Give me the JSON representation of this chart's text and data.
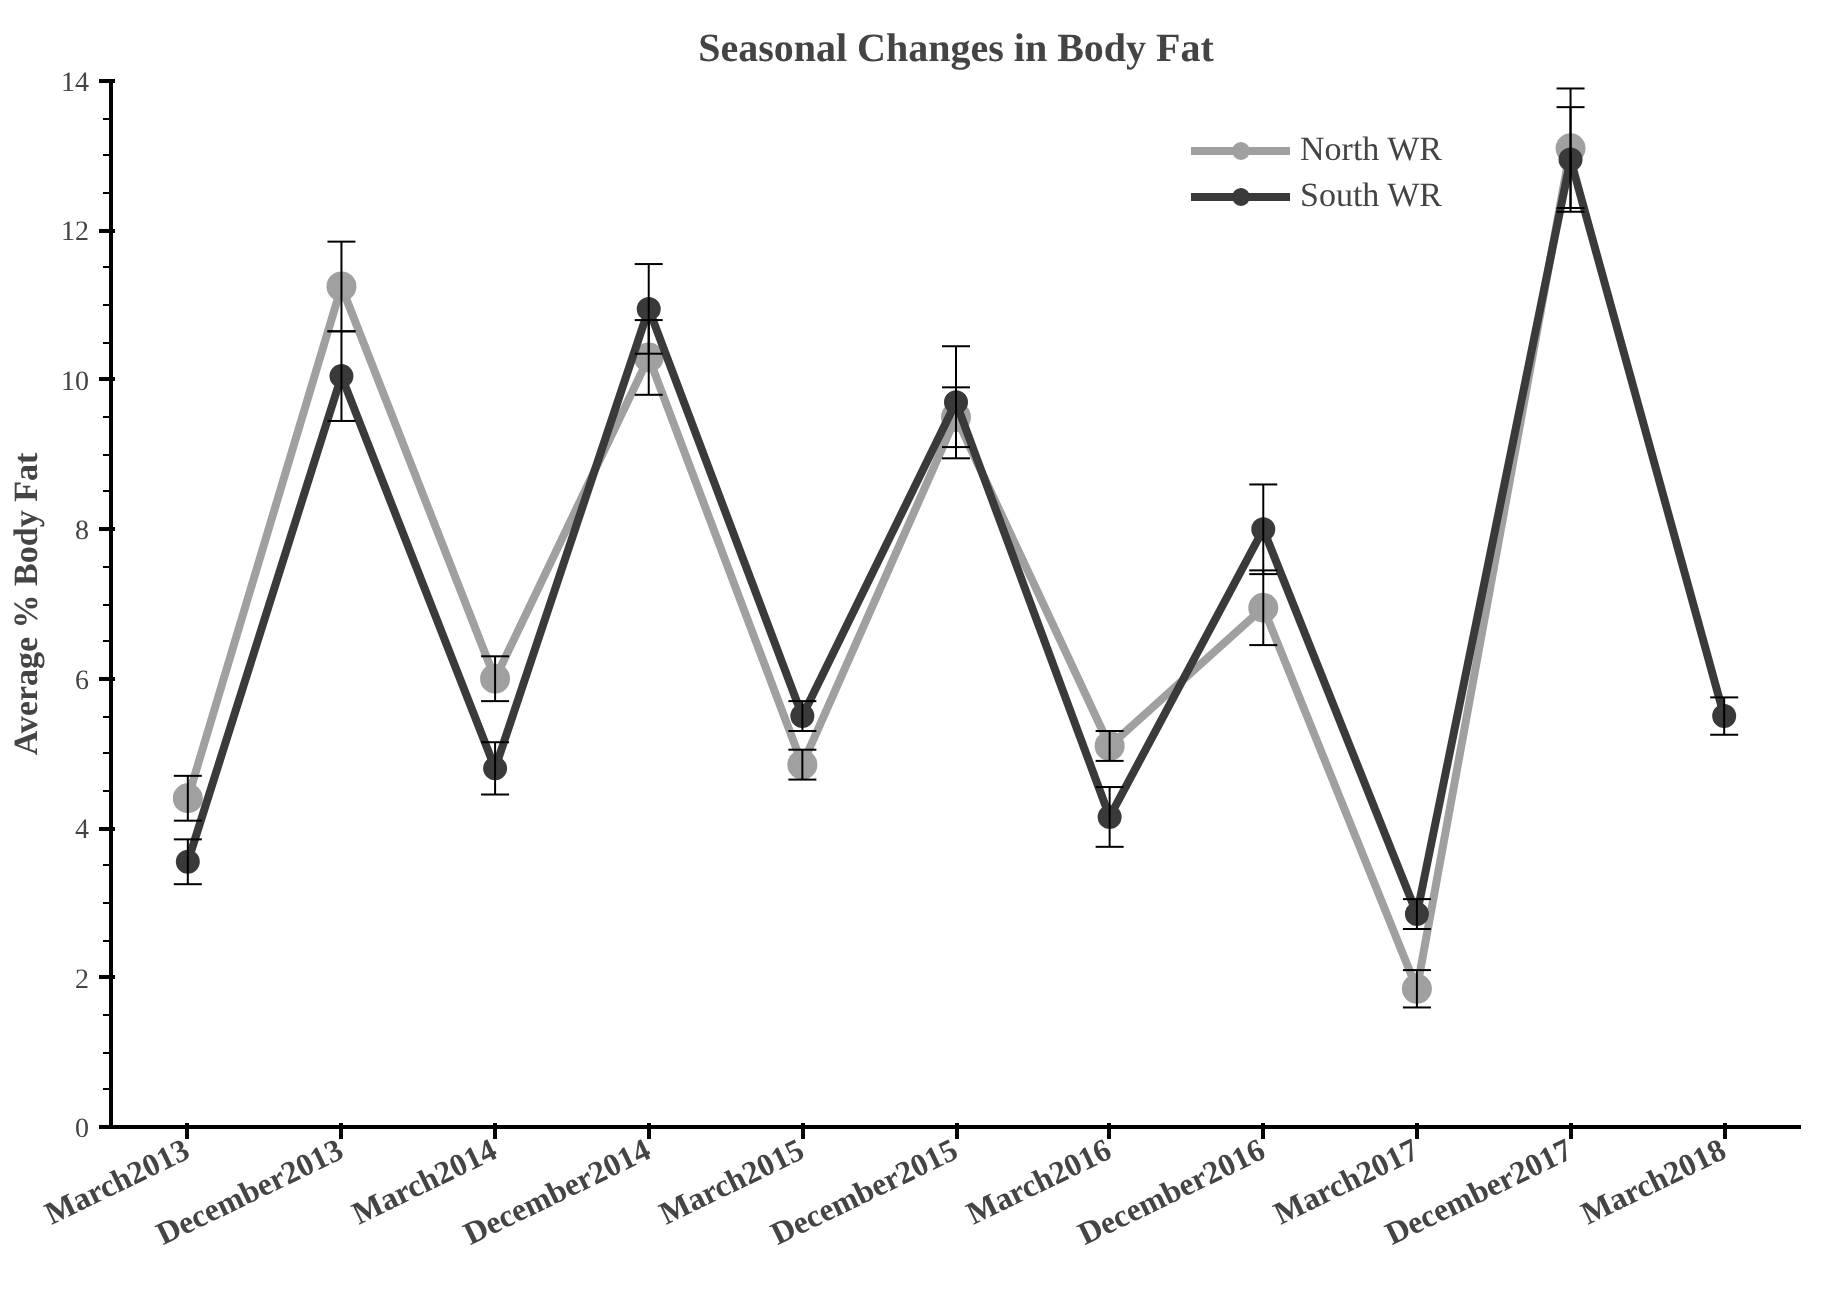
{
  "chart_data": {
    "type": "line",
    "title": "Seasonal Changes in Body Fat",
    "ylabel": "Average % Body Fat",
    "categories": [
      "March2013",
      "December2013",
      "March2014",
      "December2014",
      "March2015",
      "December2015",
      "March2016",
      "December2016",
      "March2017",
      "December2017",
      "March2018"
    ],
    "series": [
      {
        "name": "North WR",
        "color": "#a0a0a0",
        "values": [
          4.4,
          11.25,
          6.0,
          10.3,
          4.85,
          9.5,
          5.1,
          6.95,
          1.85,
          13.1,
          null
        ],
        "errors": [
          0.3,
          0.6,
          0.3,
          0.5,
          0.2,
          0.4,
          0.2,
          0.5,
          0.25,
          0.8,
          null
        ]
      },
      {
        "name": "South WR",
        "color": "#3a3a3a",
        "values": [
          3.55,
          10.05,
          4.8,
          10.95,
          5.5,
          9.7,
          4.15,
          8.0,
          2.85,
          12.95,
          5.5
        ],
        "errors": [
          0.3,
          0.6,
          0.35,
          0.6,
          0.2,
          0.75,
          0.4,
          0.6,
          0.2,
          0.7,
          0.25
        ]
      }
    ],
    "ylim": [
      0,
      14
    ],
    "yticks": [
      0,
      2,
      4,
      6,
      8,
      10,
      12,
      14
    ],
    "grid": false,
    "legend": "top right",
    "marker": "circle",
    "line_style": "solid"
  }
}
